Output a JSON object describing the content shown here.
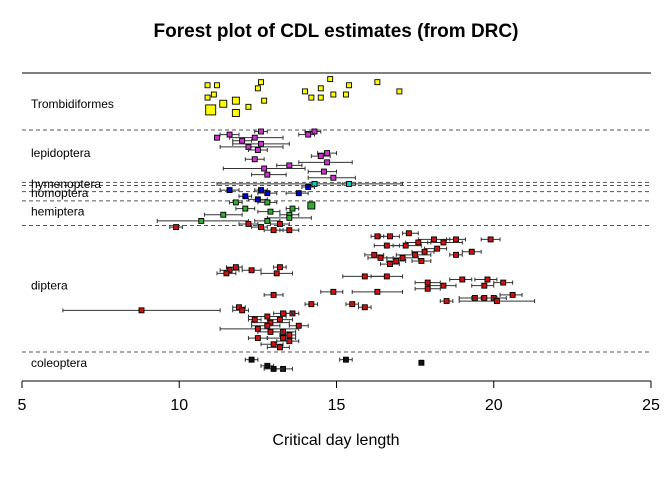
{
  "chart_data": {
    "type": "scatter",
    "title": "Forest plot of CDL estimates (from DRC)",
    "xlabel": "Critical day length",
    "ylabel": "",
    "xlim": [
      5,
      25
    ],
    "xticks": [
      "5",
      "10",
      "15",
      "20",
      "25"
    ],
    "x_tick_values": [
      5,
      10,
      15,
      20,
      25
    ],
    "grid": false,
    "row_count": 96,
    "group_separators_after_row": [
      0,
      17,
      34,
      35,
      37,
      40,
      48,
      89
    ],
    "groups": [
      {
        "name": "Trombidiformes",
        "label_row": 9,
        "color": "#ffff00"
      },
      {
        "name": "lepidoptera",
        "label_row": 25,
        "color": "#cc33cc"
      },
      {
        "name": "hymenoptera",
        "label_row": 35,
        "color": "#00cccc"
      },
      {
        "name": "homoptera",
        "label_row": 38,
        "color": "#0000cc"
      },
      {
        "name": "hemiptera",
        "label_row": 44,
        "color": "#33aa33"
      },
      {
        "name": "diptera",
        "label_row": 68,
        "color": "#cc1111"
      },
      {
        "name": "coleoptera",
        "label_row": 93,
        "color": "#111111"
      }
    ],
    "series": [
      {
        "name": "Trombidiformes",
        "points": [
          {
            "row": 1,
            "x": 14.8,
            "s": 1
          },
          {
            "row": 2,
            "x": 16.3,
            "s": 1
          },
          {
            "row": 2,
            "x": 12.6,
            "s": 1
          },
          {
            "row": 3,
            "x": 10.9,
            "s": 1
          },
          {
            "row": 3,
            "x": 11.2,
            "s": 1
          },
          {
            "row": 3,
            "x": 15.4,
            "s": 1
          },
          {
            "row": 4,
            "x": 14.5,
            "s": 1
          },
          {
            "row": 4,
            "x": 12.5,
            "s": 1
          },
          {
            "row": 5,
            "x": 17.0,
            "s": 1
          },
          {
            "row": 5,
            "x": 14.0,
            "s": 1
          },
          {
            "row": 6,
            "x": 15.3,
            "s": 1
          },
          {
            "row": 6,
            "x": 14.9,
            "s": 1
          },
          {
            "row": 6,
            "x": 11.1,
            "s": 1
          },
          {
            "row": 7,
            "x": 10.9,
            "s": 1
          },
          {
            "row": 7,
            "x": 14.5,
            "s": 1
          },
          {
            "row": 7,
            "x": 14.2,
            "s": 1
          },
          {
            "row": 8,
            "x": 11.8,
            "s": 2
          },
          {
            "row": 8,
            "x": 12.7,
            "s": 1
          },
          {
            "row": 9,
            "x": 11.4,
            "s": 2
          },
          {
            "row": 10,
            "x": 12.2,
            "s": 1
          },
          {
            "row": 11,
            "x": 11.0,
            "s": 3
          },
          {
            "row": 12,
            "x": 11.8,
            "s": 2
          }
        ]
      },
      {
        "name": "lepidoptera",
        "points": [
          {
            "row": 18,
            "x": 14.3,
            "lo": 14.0,
            "hi": 14.5
          },
          {
            "row": 18,
            "x": 12.6,
            "lo": 12.4,
            "hi": 12.8
          },
          {
            "row": 19,
            "x": 11.6,
            "lo": 11.3,
            "hi": 11.9
          },
          {
            "row": 19,
            "x": 14.1,
            "lo": 13.8,
            "hi": 14.3
          },
          {
            "row": 20,
            "x": 11.2
          },
          {
            "row": 20,
            "x": 12.4,
            "lo": 11.6,
            "hi": 13.3
          },
          {
            "row": 21,
            "x": 12.0,
            "lo": 11.7,
            "hi": 12.3
          },
          {
            "row": 22,
            "x": 12.6,
            "lo": 11.7,
            "hi": 13.5
          },
          {
            "row": 23,
            "x": 12.2,
            "lo": 11.3,
            "hi": 13.3
          },
          {
            "row": 24,
            "x": 12.5,
            "lo": 12.2,
            "hi": 12.8
          },
          {
            "row": 25,
            "x": 14.7,
            "lo": 14.4,
            "hi": 15.0
          },
          {
            "row": 26,
            "x": 14.5,
            "lo": 14.2,
            "hi": 14.8
          },
          {
            "row": 27,
            "x": 12.4,
            "lo": 12.1,
            "hi": 12.7
          },
          {
            "row": 28,
            "x": 14.7,
            "lo": 13.8,
            "hi": 15.5
          },
          {
            "row": 29,
            "x": 13.5,
            "lo": 13.1,
            "hi": 13.9
          },
          {
            "row": 30,
            "x": 12.7,
            "lo": 11.4,
            "hi": 14.0
          },
          {
            "row": 31,
            "x": 14.6,
            "lo": 14.1,
            "hi": 15.0
          },
          {
            "row": 32,
            "x": 12.8,
            "lo": 12.3,
            "hi": 13.4
          },
          {
            "row": 33,
            "x": 14.9,
            "lo": 14.1,
            "hi": 15.6
          }
        ]
      },
      {
        "name": "hymenoptera",
        "points": [
          {
            "row": 35,
            "x": 14.3,
            "lo": 11.2,
            "hi": 17.1
          },
          {
            "row": 35,
            "x": 15.4,
            "lo": 15.2,
            "hi": 15.6
          }
        ]
      },
      {
        "name": "homoptera",
        "points": [
          {
            "row": 36,
            "x": 14.1,
            "lo": 13.9,
            "hi": 14.3
          },
          {
            "row": 37,
            "x": 11.6,
            "lo": 11.3,
            "hi": 11.9
          },
          {
            "row": 37,
            "x": 12.6,
            "lo": 12.4,
            "hi": 12.8
          },
          {
            "row": 38,
            "x": 13.8,
            "lo": 13.4,
            "hi": 14.1
          },
          {
            "row": 38,
            "x": 12.8,
            "lo": 12.5,
            "hi": 13.1
          },
          {
            "row": 39,
            "x": 12.1,
            "lo": 11.9,
            "hi": 12.3
          },
          {
            "row": 40,
            "x": 12.5,
            "lo": 12.2,
            "hi": 12.8
          }
        ]
      },
      {
        "name": "hemiptera",
        "points": [
          {
            "row": 41,
            "x": 12.8,
            "lo": 12.5,
            "hi": 13.1
          },
          {
            "row": 41,
            "x": 11.8,
            "lo": 11.6,
            "hi": 12.0
          },
          {
            "row": 42,
            "x": 14.2,
            "s": 2
          },
          {
            "row": 43,
            "x": 12.1,
            "lo": 11.8,
            "hi": 12.4
          },
          {
            "row": 43,
            "x": 13.6,
            "lo": 13.4,
            "hi": 13.8
          },
          {
            "row": 44,
            "x": 12.9,
            "lo": 12.5,
            "hi": 13.2
          },
          {
            "row": 45,
            "x": 11.4,
            "lo": 10.8,
            "hi": 12.0
          },
          {
            "row": 45,
            "x": 13.5,
            "lo": 13.2,
            "hi": 13.8
          },
          {
            "row": 46,
            "x": 13.5,
            "lo": 12.8,
            "hi": 14.2
          },
          {
            "row": 47,
            "x": 12.8,
            "lo": 12.4,
            "hi": 13.2
          },
          {
            "row": 47,
            "x": 10.7,
            "lo": 9.3,
            "hi": 12.2
          }
        ]
      },
      {
        "name": "diptera",
        "points": [
          {
            "row": 48,
            "x": 12.2,
            "lo": 11.9,
            "hi": 12.5
          },
          {
            "row": 48,
            "x": 13.2,
            "lo": 12.9,
            "hi": 13.5
          },
          {
            "row": 49,
            "x": 9.9,
            "lo": 9.7,
            "hi": 10.1
          },
          {
            "row": 49,
            "x": 12.6,
            "lo": 12.3,
            "hi": 12.8
          },
          {
            "row": 50,
            "x": 13.0,
            "lo": 12.7,
            "hi": 13.3
          },
          {
            "row": 50,
            "x": 13.5,
            "lo": 13.2,
            "hi": 13.8
          },
          {
            "row": 51,
            "x": 17.3,
            "lo": 17.1,
            "hi": 17.6
          },
          {
            "row": 52,
            "x": 16.3,
            "lo": 16.1,
            "hi": 16.5
          },
          {
            "row": 52,
            "x": 16.7,
            "lo": 16.4,
            "hi": 17.0
          },
          {
            "row": 53,
            "x": 18.1,
            "lo": 17.6,
            "hi": 18.6
          },
          {
            "row": 53,
            "x": 18.8,
            "lo": 18.5,
            "hi": 19.1
          },
          {
            "row": 53,
            "x": 19.9,
            "lo": 19.6,
            "hi": 20.2
          },
          {
            "row": 54,
            "x": 18.4,
            "lo": 17.9,
            "hi": 19.0
          },
          {
            "row": 54,
            "x": 17.6,
            "lo": 17.2,
            "hi": 18.0
          },
          {
            "row": 55,
            "x": 17.2,
            "lo": 16.8,
            "hi": 17.7
          },
          {
            "row": 55,
            "x": 16.6,
            "lo": 16.2,
            "hi": 17.0
          },
          {
            "row": 56,
            "x": 18.2,
            "lo": 17.8,
            "hi": 18.5
          },
          {
            "row": 57,
            "x": 19.3,
            "lo": 19.0,
            "hi": 19.6
          },
          {
            "row": 57,
            "x": 17.8,
            "lo": 17.4,
            "hi": 18.1
          },
          {
            "row": 58,
            "x": 17.5,
            "lo": 16.9,
            "hi": 18.0
          },
          {
            "row": 58,
            "x": 16.2,
            "lo": 15.9,
            "hi": 16.5
          },
          {
            "row": 58,
            "x": 18.8,
            "lo": 18.6,
            "hi": 19.0
          },
          {
            "row": 59,
            "x": 17.1,
            "lo": 16.6,
            "hi": 17.6
          },
          {
            "row": 59,
            "x": 16.4,
            "lo": 16.0,
            "hi": 16.8
          },
          {
            "row": 60,
            "x": 17.7,
            "lo": 17.4,
            "hi": 18.0
          },
          {
            "row": 60,
            "x": 16.9,
            "lo": 16.6,
            "hi": 17.2
          },
          {
            "row": 61,
            "x": 16.7,
            "lo": 16.4,
            "hi": 17.0
          },
          {
            "row": 62,
            "x": 11.8,
            "lo": 11.5,
            "hi": 12.0
          },
          {
            "row": 62,
            "x": 13.2,
            "lo": 13.0,
            "hi": 13.4
          },
          {
            "row": 63,
            "x": 11.6,
            "lo": 11.3,
            "hi": 11.9
          },
          {
            "row": 63,
            "x": 12.3,
            "lo": 12.0,
            "hi": 12.6
          },
          {
            "row": 64,
            "x": 11.5,
            "lo": 11.2,
            "hi": 11.8
          },
          {
            "row": 64,
            "x": 13.1,
            "lo": 12.6,
            "hi": 13.6
          },
          {
            "row": 65,
            "x": 15.9,
            "lo": 15.2,
            "hi": 16.6
          },
          {
            "row": 65,
            "x": 16.6,
            "lo": 16.1,
            "hi": 17.1
          },
          {
            "row": 66,
            "x": 19.0,
            "lo": 18.6,
            "hi": 19.3
          },
          {
            "row": 66,
            "x": 19.8,
            "lo": 19.4,
            "hi": 20.1
          },
          {
            "row": 67,
            "x": 17.9,
            "lo": 17.5,
            "hi": 18.3
          },
          {
            "row": 67,
            "x": 20.3,
            "lo": 20.0,
            "hi": 20.6
          },
          {
            "row": 68,
            "x": 18.4,
            "lo": 17.9,
            "hi": 18.8
          },
          {
            "row": 68,
            "x": 19.7,
            "lo": 19.3,
            "hi": 20.0
          },
          {
            "row": 69,
            "x": 17.9,
            "lo": 17.5,
            "hi": 18.3
          },
          {
            "row": 70,
            "x": 14.9,
            "lo": 14.5,
            "hi": 15.2
          },
          {
            "row": 70,
            "x": 16.3,
            "lo": 15.5,
            "hi": 17.1
          },
          {
            "row": 71,
            "x": 13.0,
            "lo": 12.7,
            "hi": 13.3
          },
          {
            "row": 71,
            "x": 20.6,
            "lo": 20.2,
            "hi": 20.9
          },
          {
            "row": 72,
            "x": 20.0,
            "lo": 19.6,
            "hi": 20.4
          },
          {
            "row": 72,
            "x": 19.4,
            "lo": 18.9,
            "hi": 20.0
          },
          {
            "row": 72,
            "x": 19.7,
            "lo": 19.3,
            "hi": 20.1
          },
          {
            "row": 73,
            "x": 18.5,
            "lo": 18.3,
            "hi": 18.7
          },
          {
            "row": 73,
            "x": 20.1,
            "lo": 18.9,
            "hi": 21.3
          },
          {
            "row": 74,
            "x": 14.2,
            "lo": 14.0,
            "hi": 14.4
          },
          {
            "row": 74,
            "x": 15.5,
            "lo": 15.3,
            "hi": 15.7
          },
          {
            "row": 75,
            "x": 15.9,
            "lo": 15.7,
            "hi": 16.1
          },
          {
            "row": 75,
            "x": 11.9,
            "lo": 11.7,
            "hi": 12.1
          },
          {
            "row": 76,
            "x": 8.8,
            "lo": 6.3,
            "hi": 11.3
          },
          {
            "row": 76,
            "x": 12.0,
            "lo": 11.7,
            "hi": 12.2
          },
          {
            "row": 77,
            "x": 13.6,
            "lo": 13.4,
            "hi": 13.8
          },
          {
            "row": 77,
            "x": 13.3,
            "lo": 13.0,
            "hi": 13.6
          },
          {
            "row": 78,
            "x": 12.8,
            "lo": 12.2,
            "hi": 13.4
          },
          {
            "row": 79,
            "x": 13.2,
            "lo": 12.8,
            "hi": 13.6
          },
          {
            "row": 79,
            "x": 12.4,
            "lo": 12.2,
            "hi": 12.6
          },
          {
            "row": 80,
            "x": 12.9,
            "lo": 12.3,
            "hi": 13.5
          },
          {
            "row": 81,
            "x": 12.8,
            "lo": 12.3,
            "hi": 13.2
          },
          {
            "row": 81,
            "x": 13.8,
            "lo": 13.5,
            "hi": 14.1
          },
          {
            "row": 82,
            "x": 12.5,
            "lo": 11.3,
            "hi": 13.8
          },
          {
            "row": 83,
            "x": 13.3,
            "lo": 12.9,
            "hi": 13.7
          },
          {
            "row": 83,
            "x": 12.9,
            "lo": 12.5,
            "hi": 13.3
          },
          {
            "row": 84,
            "x": 13.5,
            "lo": 13.2,
            "hi": 13.7
          },
          {
            "row": 85,
            "x": 12.5,
            "lo": 12.2,
            "hi": 12.8
          },
          {
            "row": 85,
            "x": 13.3,
            "lo": 12.8,
            "hi": 13.7
          },
          {
            "row": 86,
            "x": 13.5,
            "lo": 13.1,
            "hi": 13.8
          },
          {
            "row": 87,
            "x": 13.0,
            "lo": 12.6,
            "hi": 13.3
          },
          {
            "row": 88,
            "x": 13.2,
            "lo": 12.8,
            "hi": 13.5
          }
        ]
      },
      {
        "name": "coleoptera",
        "points": [
          {
            "row": 92,
            "x": 12.3,
            "lo": 12.1,
            "hi": 12.5
          },
          {
            "row": 92,
            "x": 15.3,
            "lo": 15.1,
            "hi": 15.5
          },
          {
            "row": 93,
            "x": 17.7
          },
          {
            "row": 94,
            "x": 12.8,
            "lo": 12.6,
            "hi": 13.0
          },
          {
            "row": 95,
            "x": 13.3,
            "lo": 13.0,
            "hi": 13.6
          },
          {
            "row": 95,
            "x": 13.0,
            "lo": 12.7,
            "hi": 13.3
          }
        ]
      }
    ]
  }
}
